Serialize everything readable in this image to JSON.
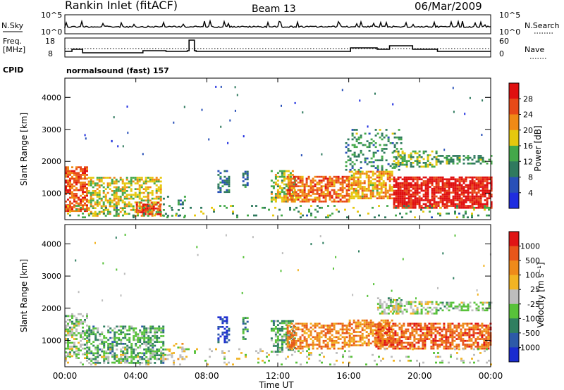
{
  "header": {
    "station": "Rankin Inlet (fitACF)",
    "beam": "Beam 13",
    "date": "06/Mar/2009"
  },
  "top_panels": {
    "nsky_label": "N.Sky",
    "nsky_ticks": [
      "10^5",
      "10^0"
    ],
    "nsearch_label": "N.Search",
    "nsearch_ticks": [
      "10^5",
      "10^0"
    ],
    "freq_label_1": "Freq.",
    "freq_label_2": "[MHz]",
    "freq_ticks": [
      "18",
      "8"
    ],
    "nave_label": "Nave",
    "nave_ticks": [
      "60",
      "0"
    ],
    "cpid_label": "CPID",
    "cpid_value": "normalsound (fast) 157"
  },
  "chart_data": [
    {
      "type": "heatmap",
      "panel": "power",
      "ylabel": "Slant Range [km]",
      "xlabel": "Time UT",
      "x_ticks": [
        "00:00",
        "04:00",
        "08:00",
        "12:00",
        "16:00",
        "20:00",
        "00:00"
      ],
      "y_ticks": [
        "1000",
        "2000",
        "3000",
        "4000"
      ],
      "ylim": [
        180,
        4600
      ],
      "xlim_hours": [
        0,
        24
      ],
      "colorbar_label": "Power [dB]",
      "colorbar_ticks": [
        "4",
        "8",
        "12",
        "16",
        "20",
        "24",
        "28"
      ],
      "colorbar_colors": [
        "#1f2de0",
        "#2850b8",
        "#2f7a5e",
        "#44a84a",
        "#e6c80e",
        "#f08a16",
        "#e84a18",
        "#e01010"
      ]
    },
    {
      "type": "heatmap",
      "panel": "velocity",
      "ylabel": "Slant Range [km]",
      "xlabel": "Time UT",
      "x_ticks": [
        "00:00",
        "04:00",
        "08:00",
        "12:00",
        "16:00",
        "20:00",
        "00:00"
      ],
      "y_ticks": [
        "1000",
        "2000",
        "3000",
        "4000"
      ],
      "ylim": [
        180,
        4600
      ],
      "xlim_hours": [
        0,
        24
      ],
      "colorbar_label": "Velocity  [m s⁻¹]",
      "colorbar_ticks": [
        "1000",
        "500",
        "100",
        "25",
        "-25",
        "-100",
        "-500",
        "-1000"
      ],
      "colorbar_colors": [
        "#1a2ccf",
        "#2d5aa8",
        "#2f7f60",
        "#58c23a",
        "#bdbdbd",
        "#f2b423",
        "#ee8a1a",
        "#e8561a",
        "#e01515"
      ]
    }
  ],
  "bottom_axis": {
    "xlabel": "Time UT"
  }
}
